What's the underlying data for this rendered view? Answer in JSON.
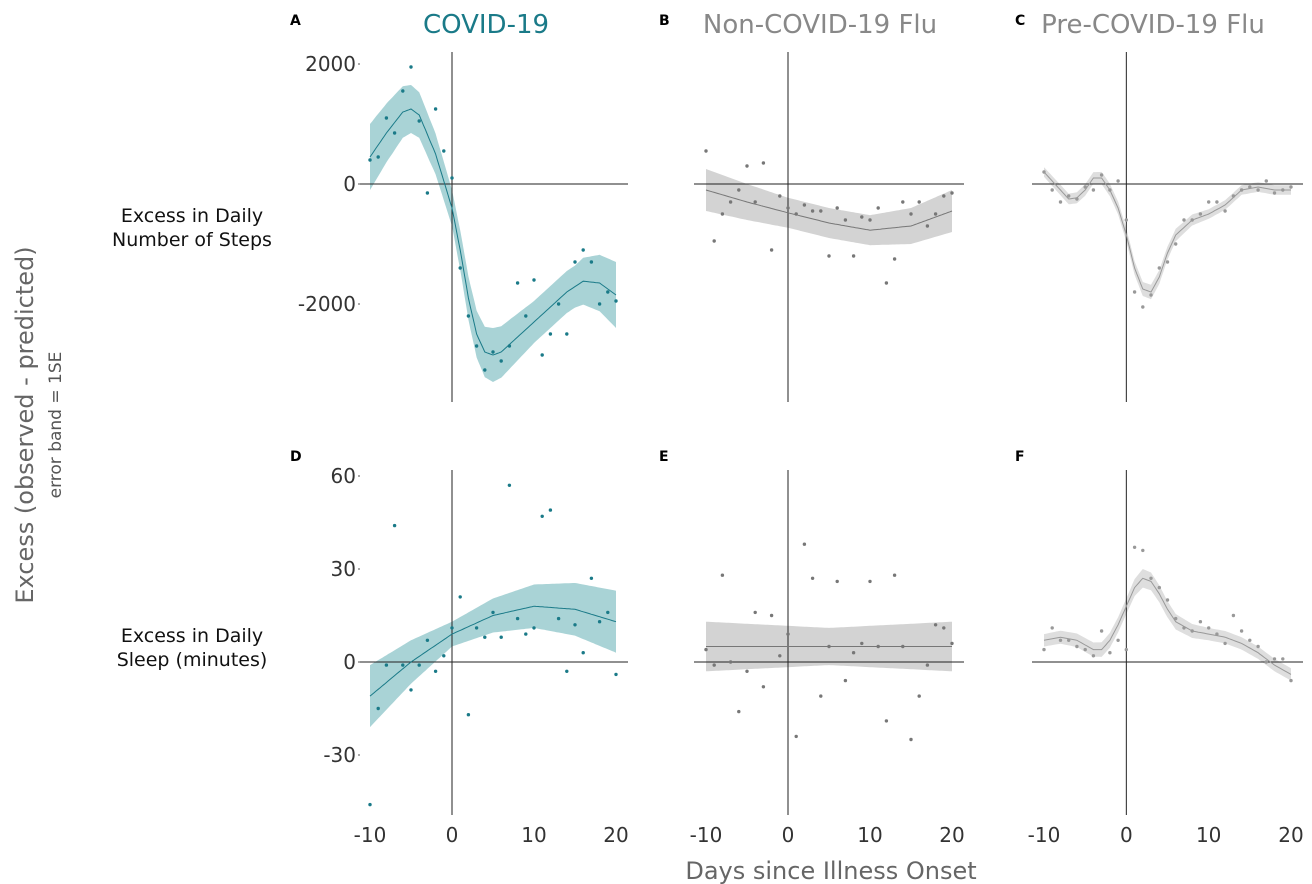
{
  "xlabel": "Days since Illness Onset",
  "ylabel_main": "Excess (observed - predicted)",
  "ylabel_sub": "error band = 1SE",
  "row_labels": [
    [
      "Excess in Daily",
      "Number of Steps"
    ],
    [
      "Excess in Daily",
      "Sleep (minutes)"
    ]
  ],
  "columns": [
    {
      "title": "COVID-19",
      "color": "#1a7a88",
      "band": "#a9d3d6"
    },
    {
      "title": "Non-COVID-19 Flu",
      "color": "#777777",
      "band": "#d3d3d3"
    },
    {
      "title": "Pre-COVID-19 Flu",
      "color": "#999999",
      "band": "#dedede"
    }
  ],
  "chart_data": [
    {
      "panel": "A",
      "type": "scatter",
      "title": "COVID-19",
      "xlim": [
        -10,
        20
      ],
      "ylim": [
        -3600,
        2000
      ],
      "xticks": [
        -10,
        0,
        10,
        20
      ],
      "yticks": [
        2000,
        0,
        -2000
      ],
      "points": [
        [
          -10,
          400
        ],
        [
          -9,
          450
        ],
        [
          -8,
          1100
        ],
        [
          -7,
          850
        ],
        [
          -6,
          1550
        ],
        [
          -5,
          1950
        ],
        [
          -4,
          1050
        ],
        [
          -3,
          -150
        ],
        [
          -2,
          1250
        ],
        [
          -1,
          550
        ],
        [
          0,
          100
        ],
        [
          1,
          -1400
        ],
        [
          2,
          -2200
        ],
        [
          3,
          -2700
        ],
        [
          4,
          -3100
        ],
        [
          5,
          -2800
        ],
        [
          6,
          -2950
        ],
        [
          7,
          -2700
        ],
        [
          8,
          -1650
        ],
        [
          9,
          -2200
        ],
        [
          10,
          -1600
        ],
        [
          11,
          -2850
        ],
        [
          12,
          -2500
        ],
        [
          13,
          -2000
        ],
        [
          14,
          -2500
        ],
        [
          15,
          -1300
        ],
        [
          16,
          -1100
        ],
        [
          17,
          -1300
        ],
        [
          18,
          -2000
        ],
        [
          19,
          -1800
        ],
        [
          20,
          -1950
        ]
      ],
      "fit": [
        [
          -10,
          450
        ],
        [
          -8,
          850
        ],
        [
          -6,
          1200
        ],
        [
          -5,
          1250
        ],
        [
          -4,
          1150
        ],
        [
          -2,
          500
        ],
        [
          0,
          -400
        ],
        [
          1,
          -1100
        ],
        [
          2,
          -1900
        ],
        [
          3,
          -2500
        ],
        [
          4,
          -2800
        ],
        [
          5,
          -2850
        ],
        [
          6,
          -2800
        ],
        [
          8,
          -2550
        ],
        [
          10,
          -2300
        ],
        [
          12,
          -2050
        ],
        [
          14,
          -1800
        ],
        [
          16,
          -1620
        ],
        [
          18,
          -1650
        ],
        [
          20,
          -1850
        ]
      ],
      "band_width": [
        [
          -10,
          550
        ],
        [
          -5,
          400
        ],
        [
          0,
          300
        ],
        [
          5,
          450
        ],
        [
          10,
          350
        ],
        [
          15,
          350
        ],
        [
          20,
          550
        ]
      ]
    },
    {
      "panel": "B",
      "type": "scatter",
      "title": "Non-COVID-19 Flu",
      "xlim": [
        -10,
        20
      ],
      "ylim": [
        -3600,
        2000
      ],
      "xticks": [
        -10,
        0,
        10,
        20
      ],
      "yticks": [
        2000,
        0,
        -2000
      ],
      "points": [
        [
          -10,
          550
        ],
        [
          -9,
          -950
        ],
        [
          -8,
          -500
        ],
        [
          -7,
          -300
        ],
        [
          -6,
          -100
        ],
        [
          -5,
          300
        ],
        [
          -4,
          -300
        ],
        [
          -3,
          350
        ],
        [
          -2,
          -1100
        ],
        [
          -1,
          -200
        ],
        [
          0,
          -400
        ],
        [
          1,
          -500
        ],
        [
          2,
          -350
        ],
        [
          3,
          -450
        ],
        [
          4,
          -450
        ],
        [
          5,
          -1200
        ],
        [
          6,
          -400
        ],
        [
          7,
          -600
        ],
        [
          8,
          -1200
        ],
        [
          9,
          -550
        ],
        [
          10,
          -600
        ],
        [
          11,
          -400
        ],
        [
          12,
          -1650
        ],
        [
          13,
          -1250
        ],
        [
          14,
          -300
        ],
        [
          15,
          -500
        ],
        [
          16,
          -300
        ],
        [
          17,
          -700
        ],
        [
          18,
          -500
        ],
        [
          19,
          -200
        ],
        [
          20,
          -150
        ]
      ],
      "fit": [
        [
          -10,
          -100
        ],
        [
          -5,
          -300
        ],
        [
          0,
          -480
        ],
        [
          5,
          -650
        ],
        [
          10,
          -770
        ],
        [
          15,
          -700
        ],
        [
          20,
          -450
        ]
      ],
      "band_width": [
        [
          -10,
          350
        ],
        [
          0,
          250
        ],
        [
          10,
          250
        ],
        [
          20,
          350
        ]
      ]
    },
    {
      "panel": "C",
      "type": "scatter",
      "title": "Pre-COVID-19 Flu",
      "xlim": [
        -10,
        20
      ],
      "ylim": [
        -3600,
        2000
      ],
      "xticks": [
        -10,
        0,
        10,
        20
      ],
      "yticks": [
        2000,
        0,
        -2000
      ],
      "points": [
        [
          -10,
          200
        ],
        [
          -9,
          -100
        ],
        [
          -8,
          -300
        ],
        [
          -7,
          -200
        ],
        [
          -6,
          -250
        ],
        [
          -5,
          -50
        ],
        [
          -4,
          -100
        ],
        [
          -3,
          150
        ],
        [
          -2,
          -100
        ],
        [
          -1,
          50
        ],
        [
          0,
          -600
        ],
        [
          1,
          -1800
        ],
        [
          2,
          -2050
        ],
        [
          3,
          -1850
        ],
        [
          4,
          -1400
        ],
        [
          5,
          -1300
        ],
        [
          6,
          -1000
        ],
        [
          7,
          -600
        ],
        [
          8,
          -600
        ],
        [
          9,
          -500
        ],
        [
          10,
          -300
        ],
        [
          11,
          -300
        ],
        [
          12,
          -450
        ],
        [
          13,
          -200
        ],
        [
          14,
          -100
        ],
        [
          15,
          -50
        ],
        [
          16,
          -100
        ],
        [
          17,
          50
        ],
        [
          18,
          -150
        ],
        [
          19,
          -100
        ],
        [
          20,
          -50
        ]
      ],
      "fit": [
        [
          -10,
          200
        ],
        [
          -8,
          -100
        ],
        [
          -7,
          -250
        ],
        [
          -6,
          -230
        ],
        [
          -5,
          -100
        ],
        [
          -4,
          100
        ],
        [
          -3,
          100
        ],
        [
          -2,
          -100
        ],
        [
          -1,
          -400
        ],
        [
          0,
          -850
        ],
        [
          1,
          -1400
        ],
        [
          2,
          -1750
        ],
        [
          3,
          -1800
        ],
        [
          4,
          -1550
        ],
        [
          5,
          -1150
        ],
        [
          6,
          -850
        ],
        [
          8,
          -600
        ],
        [
          10,
          -500
        ],
        [
          12,
          -350
        ],
        [
          14,
          -100
        ],
        [
          16,
          -50
        ],
        [
          18,
          -100
        ],
        [
          20,
          -100
        ]
      ],
      "band_width": [
        [
          -10,
          80
        ],
        [
          0,
          110
        ],
        [
          3,
          120
        ],
        [
          10,
          80
        ],
        [
          20,
          80
        ]
      ]
    },
    {
      "panel": "D",
      "type": "scatter",
      "xlim": [
        -10,
        20
      ],
      "ylim": [
        -46,
        62
      ],
      "xticks": [
        -10,
        0,
        10,
        20
      ],
      "yticks": [
        60,
        30,
        0,
        -30
      ],
      "points": [
        [
          -10,
          -46
        ],
        [
          -9,
          -15
        ],
        [
          -8,
          -1
        ],
        [
          -7,
          44
        ],
        [
          -6,
          -1
        ],
        [
          -5,
          -9
        ],
        [
          -4,
          -1
        ],
        [
          -3,
          7
        ],
        [
          -2,
          -3
        ],
        [
          -1,
          2
        ],
        [
          0,
          11
        ],
        [
          1,
          21
        ],
        [
          2,
          -17
        ],
        [
          3,
          11
        ],
        [
          4,
          8
        ],
        [
          5,
          16
        ],
        [
          6,
          8
        ],
        [
          7,
          57
        ],
        [
          8,
          14
        ],
        [
          9,
          9
        ],
        [
          10,
          11
        ],
        [
          11,
          47
        ],
        [
          12,
          49
        ],
        [
          13,
          14
        ],
        [
          14,
          -3
        ],
        [
          15,
          12
        ],
        [
          16,
          3
        ],
        [
          17,
          27
        ],
        [
          18,
          13
        ],
        [
          19,
          16
        ],
        [
          20,
          -4
        ]
      ],
      "fit": [
        [
          -10,
          -11
        ],
        [
          -5,
          0
        ],
        [
          0,
          9
        ],
        [
          5,
          15
        ],
        [
          10,
          18
        ],
        [
          15,
          17
        ],
        [
          20,
          13
        ]
      ],
      "band_width": [
        [
          -10,
          10
        ],
        [
          0,
          4
        ],
        [
          10,
          7
        ],
        [
          20,
          10
        ]
      ]
    },
    {
      "panel": "E",
      "type": "scatter",
      "xlim": [
        -10,
        20
      ],
      "ylim": [
        -46,
        62
      ],
      "xticks": [
        -10,
        0,
        10,
        20
      ],
      "yticks": [
        60,
        30,
        0,
        -30
      ],
      "points": [
        [
          -10,
          4
        ],
        [
          -9,
          -1
        ],
        [
          -8,
          28
        ],
        [
          -7,
          0
        ],
        [
          -6,
          -16
        ],
        [
          -5,
          -3
        ],
        [
          -4,
          16
        ],
        [
          -3,
          -8
        ],
        [
          -2,
          15
        ],
        [
          -1,
          2
        ],
        [
          0,
          9
        ],
        [
          1,
          -24
        ],
        [
          2,
          38
        ],
        [
          3,
          27
        ],
        [
          4,
          -11
        ],
        [
          5,
          5
        ],
        [
          6,
          26
        ],
        [
          7,
          -6
        ],
        [
          8,
          3
        ],
        [
          9,
          6
        ],
        [
          10,
          26
        ],
        [
          11,
          5
        ],
        [
          12,
          -19
        ],
        [
          13,
          28
        ],
        [
          14,
          5
        ],
        [
          15,
          -25
        ],
        [
          16,
          -11
        ],
        [
          17,
          -1
        ],
        [
          18,
          12
        ],
        [
          19,
          11
        ],
        [
          20,
          6
        ]
      ],
      "fit": [
        [
          -10,
          5
        ],
        [
          20,
          5
        ]
      ],
      "band_width": [
        [
          -10,
          8
        ],
        [
          5,
          6
        ],
        [
          20,
          8
        ]
      ]
    },
    {
      "panel": "F",
      "type": "scatter",
      "xlim": [
        -10,
        20
      ],
      "ylim": [
        -46,
        62
      ],
      "xticks": [
        -10,
        0,
        10,
        20
      ],
      "yticks": [
        60,
        30,
        0,
        -30
      ],
      "points": [
        [
          -10,
          4
        ],
        [
          -9,
          11
        ],
        [
          -8,
          7
        ],
        [
          -7,
          7
        ],
        [
          -6,
          5
        ],
        [
          -5,
          4
        ],
        [
          -4,
          2
        ],
        [
          -3,
          10
        ],
        [
          -2,
          3
        ],
        [
          -1,
          7
        ],
        [
          0,
          4
        ],
        [
          1,
          37
        ],
        [
          2,
          36
        ],
        [
          3,
          27
        ],
        [
          4,
          24
        ],
        [
          5,
          20
        ],
        [
          6,
          14
        ],
        [
          7,
          11
        ],
        [
          8,
          10
        ],
        [
          9,
          13
        ],
        [
          10,
          11
        ],
        [
          11,
          9
        ],
        [
          12,
          6
        ],
        [
          13,
          15
        ],
        [
          14,
          10
        ],
        [
          15,
          7
        ],
        [
          16,
          5
        ],
        [
          17,
          0
        ],
        [
          18,
          1
        ],
        [
          19,
          1
        ],
        [
          20,
          -6
        ]
      ],
      "fit": [
        [
          -10,
          7
        ],
        [
          -8,
          8
        ],
        [
          -6,
          7
        ],
        [
          -4,
          4
        ],
        [
          -3,
          4
        ],
        [
          -2,
          7
        ],
        [
          -1,
          12
        ],
        [
          0,
          18
        ],
        [
          1,
          24
        ],
        [
          2,
          27
        ],
        [
          3,
          26
        ],
        [
          4,
          22
        ],
        [
          5,
          17
        ],
        [
          6,
          13
        ],
        [
          8,
          10
        ],
        [
          10,
          9
        ],
        [
          12,
          8
        ],
        [
          14,
          6
        ],
        [
          16,
          3
        ],
        [
          18,
          -1
        ],
        [
          20,
          -4
        ]
      ],
      "band_width": [
        [
          -10,
          2
        ],
        [
          0,
          2.5
        ],
        [
          2,
          3
        ],
        [
          10,
          2
        ],
        [
          20,
          2
        ]
      ]
    }
  ]
}
